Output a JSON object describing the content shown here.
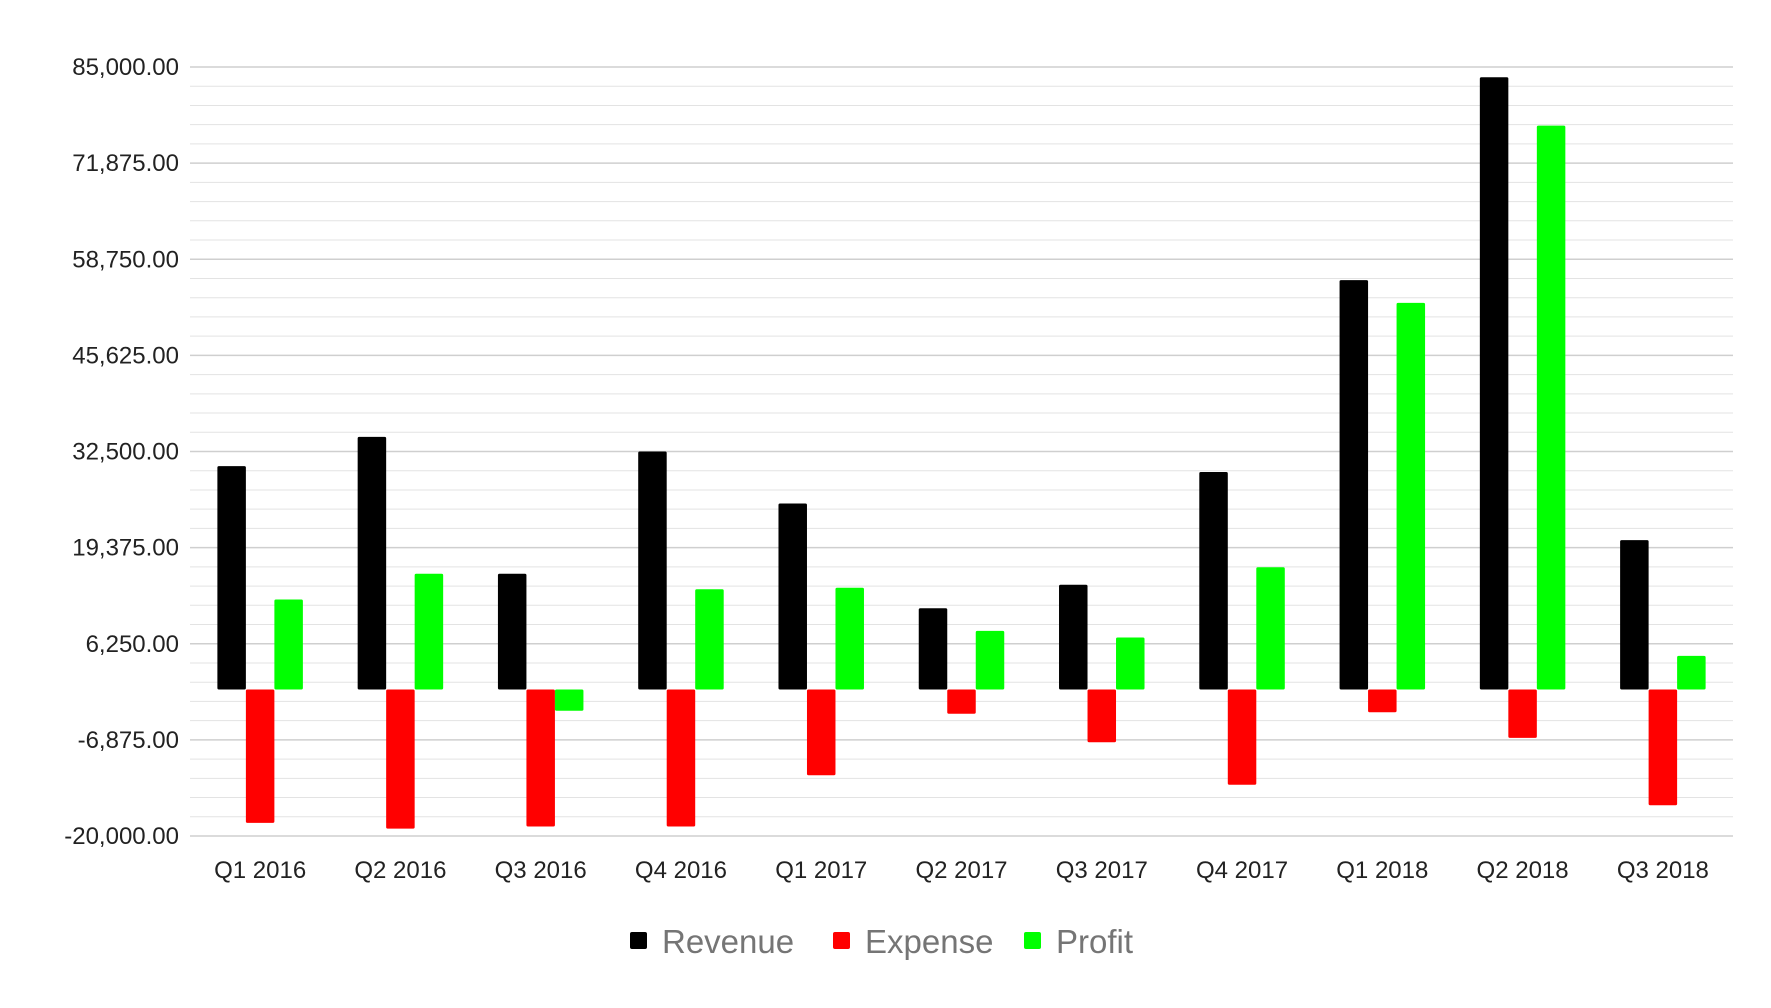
{
  "chart_data": {
    "type": "bar",
    "title": "",
    "xlabel": "",
    "ylabel": "",
    "categories": [
      "Q1 2016",
      "Q2 2016",
      "Q3 2016",
      "Q4 2016",
      "Q1 2017",
      "Q2 2017",
      "Q3 2017",
      "Q4 2017",
      "Q1 2018",
      "Q2 2018",
      "Q3 2018"
    ],
    "series": [
      {
        "name": "Revenue",
        "color": "#000000",
        "values": [
          30500,
          34500,
          15800,
          32500,
          25400,
          11100,
          14300,
          29700,
          55900,
          83600,
          20400
        ]
      },
      {
        "name": "Expense",
        "color": "#ff0000",
        "values": [
          -18200,
          -19000,
          -18700,
          -18700,
          -11700,
          -3300,
          -7200,
          -13000,
          -3100,
          -6600,
          -15800
        ]
      },
      {
        "name": "Profit",
        "color": "#00ff00",
        "values": [
          12300,
          15800,
          -2900,
          13700,
          13900,
          8000,
          7100,
          16700,
          52800,
          77000,
          4600
        ]
      }
    ],
    "ylim": [
      -20000,
      85000
    ],
    "yticks": [
      "85,000.00",
      "71,875.00",
      "58,750.00",
      "45,625.00",
      "32,500.00",
      "19,375.00",
      "6,250.00",
      "-6,875.00",
      "-20,000.00"
    ],
    "grid": true,
    "legend_position": "bottom"
  }
}
